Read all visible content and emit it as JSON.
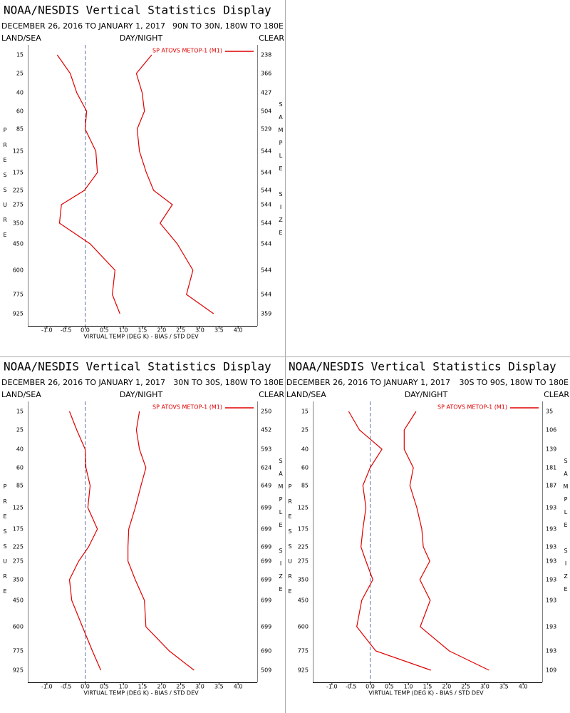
{
  "chart_data": [
    {
      "type": "line",
      "title": "NOAA/NESDIS Vertical Statistics Display",
      "subtitle": "DECEMBER 26, 2016 TO JANUARY 1, 2017",
      "region": "90N TO 30N, 180W TO 180E",
      "left_header": "LAND/SEA",
      "center_header": "DAY/NIGHT",
      "right_header": "CLEAR",
      "xlabel": "VIRTUAL TEMP (DEG K) - BIAS / STD DEV",
      "ylabel": "PRESSURE",
      "y2label": "SAMPLE SIZE",
      "categories": [
        15,
        25,
        40,
        60,
        85,
        125,
        175,
        225,
        275,
        350,
        450,
        600,
        775,
        925
      ],
      "sample_size": [
        238,
        366,
        427,
        504,
        529,
        544,
        544,
        544,
        544,
        544,
        544,
        544,
        544,
        359
      ],
      "series": [
        {
          "name": "SP ATOVS METOP-1 (M1)",
          "color": "#e00000",
          "values": [
            -0.73,
            -0.39,
            -0.22,
            0.04,
            0.0,
            0.28,
            0.32,
            -0.02,
            -0.62,
            -0.67,
            0.13,
            0.78,
            0.71,
            0.91
          ]
        },
        {
          "color": "#e00000",
          "values": [
            1.74,
            1.34,
            1.49,
            1.55,
            1.36,
            1.42,
            1.6,
            1.79,
            2.28,
            1.96,
            2.41,
            2.82,
            2.65,
            3.36
          ]
        }
      ],
      "xlim": [
        -1.5,
        4.5
      ],
      "xticks": [
        {
          "value": -1,
          "label": "-1.0"
        },
        {
          "value": -0.5,
          "label": "-0.5"
        },
        {
          "value": 0,
          "label": "0.0"
        },
        {
          "value": 0.5,
          "label": "0.5"
        },
        {
          "value": 1,
          "label": "1.0"
        },
        {
          "value": 1.5,
          "label": "1.5"
        },
        {
          "value": 2,
          "label": "2.0"
        },
        {
          "value": 2.5,
          "label": "2.5"
        },
        {
          "value": 3,
          "label": "3.0"
        },
        {
          "value": 3.5,
          "label": "3.5"
        },
        {
          "value": 4,
          "label": "4.0"
        }
      ]
    },
    {
      "type": "line",
      "title": "NOAA/NESDIS Vertical Statistics Display",
      "subtitle": "DECEMBER 26, 2016 TO JANUARY 1, 2017",
      "region": "30N TO 30S, 180W TO 180E",
      "left_header": "LAND/SEA",
      "center_header": "DAY/NIGHT",
      "right_header": "CLEAR",
      "xlabel": "VIRTUAL TEMP (DEG K) - BIAS / STD DEV",
      "ylabel": "PRESSURE",
      "y2label": "SAMPLE SIZE",
      "categories": [
        15,
        25,
        40,
        60,
        85,
        125,
        175,
        225,
        275,
        350,
        450,
        600,
        775,
        925
      ],
      "sample_size": [
        250,
        452,
        593,
        624,
        649,
        699,
        699,
        699,
        699,
        699,
        699,
        699,
        690,
        509
      ],
      "series": [
        {
          "name": "SP ATOVS METOP-1 (M1)",
          "color": "#e00000",
          "values": [
            -0.41,
            -0.22,
            0.0,
            0.02,
            0.13,
            0.07,
            0.32,
            0.09,
            -0.17,
            -0.41,
            -0.35,
            -0.07,
            0.19,
            0.41
          ]
        },
        {
          "color": "#e00000",
          "values": [
            1.42,
            1.34,
            1.42,
            1.59,
            1.46,
            1.31,
            1.14,
            1.12,
            1.12,
            1.31,
            1.55,
            1.59,
            2.2,
            2.85
          ]
        }
      ],
      "xlim": [
        -1.5,
        4.5
      ],
      "xticks": [
        {
          "value": -1,
          "label": "-1.0"
        },
        {
          "value": -0.5,
          "label": "-0.5"
        },
        {
          "value": 0,
          "label": "0.0"
        },
        {
          "value": 0.5,
          "label": "0.5"
        },
        {
          "value": 1,
          "label": "1.0"
        },
        {
          "value": 1.5,
          "label": "1.5"
        },
        {
          "value": 2,
          "label": "2.0"
        },
        {
          "value": 2.5,
          "label": "2.5"
        },
        {
          "value": 3,
          "label": "3.0"
        },
        {
          "value": 3.5,
          "label": "3.5"
        },
        {
          "value": 4,
          "label": "4.0"
        }
      ]
    },
    {
      "type": "line",
      "title": "NOAA/NESDIS Vertical Statistics Display",
      "subtitle": "DECEMBER 26, 2016 TO JANUARY 1, 2017",
      "region": "30S TO 90S, 180W TO 180E",
      "left_header": "LAND/SEA",
      "center_header": "DAY/NIGHT",
      "right_header": "CLEAR",
      "xlabel": "VIRTUAL TEMP (DEG K) - BIAS / STD DEV",
      "ylabel": "PRESSURE",
      "y2label": "SAMPLE SIZE",
      "categories": [
        15,
        25,
        40,
        60,
        85,
        125,
        175,
        225,
        275,
        350,
        450,
        600,
        775,
        925
      ],
      "sample_size": [
        35,
        106,
        139,
        181,
        187,
        193,
        193,
        193,
        193,
        193,
        193,
        193,
        193,
        109
      ],
      "series": [
        {
          "name": "SP ATOVS METOP-1 (M1)",
          "color": "#e00000",
          "values": [
            -0.56,
            -0.28,
            0.31,
            0.0,
            -0.19,
            -0.11,
            -0.19,
            -0.24,
            -0.11,
            0.07,
            -0.22,
            -0.35,
            0.15,
            1.59
          ]
        },
        {
          "color": "#e00000",
          "values": [
            1.2,
            0.89,
            0.89,
            1.13,
            1.04,
            1.22,
            1.35,
            1.39,
            1.56,
            1.3,
            1.57,
            1.31,
            2.07,
            3.11
          ]
        }
      ],
      "xlim": [
        -1.5,
        4.5
      ],
      "xticks": [
        {
          "value": -1,
          "label": "-1.0"
        },
        {
          "value": -0.5,
          "label": "-0.5"
        },
        {
          "value": 0,
          "label": "0.0"
        },
        {
          "value": 0.5,
          "label": "0.5"
        },
        {
          "value": 1,
          "label": "1.0"
        },
        {
          "value": 1.5,
          "label": "1.5"
        },
        {
          "value": 2,
          "label": "2.0"
        },
        {
          "value": 2.5,
          "label": "2.5"
        },
        {
          "value": 3,
          "label": "3.0"
        },
        {
          "value": 3.5,
          "label": "3.5"
        },
        {
          "value": 4,
          "label": "4.0"
        }
      ]
    }
  ]
}
